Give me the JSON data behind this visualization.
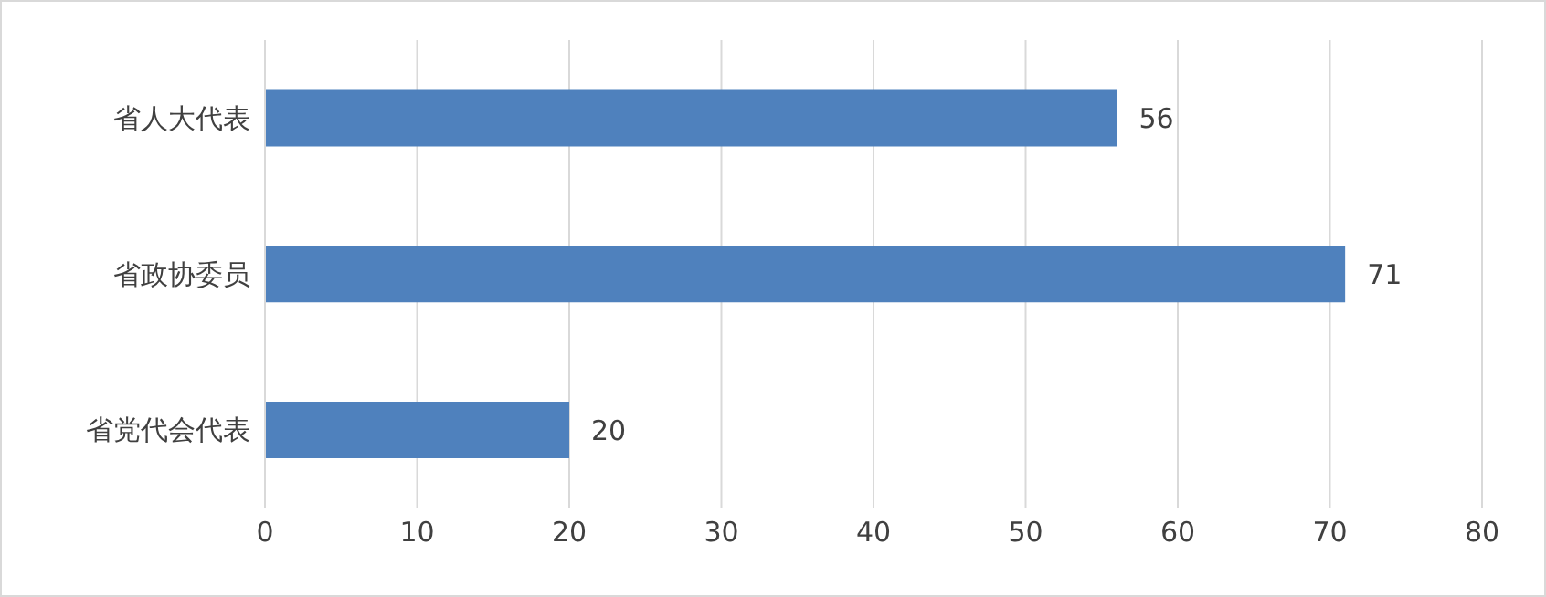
{
  "chart_data": {
    "type": "bar",
    "orientation": "horizontal",
    "categories": [
      "省人大代表",
      "省政协委员",
      "省党代会代表"
    ],
    "values": [
      56,
      71,
      20
    ],
    "color": "#4f81bd",
    "xlim": [
      0,
      80
    ],
    "xticks": [
      0,
      10,
      20,
      30,
      40,
      50,
      60,
      70,
      80
    ],
    "grid": "x",
    "data_labels": true
  }
}
